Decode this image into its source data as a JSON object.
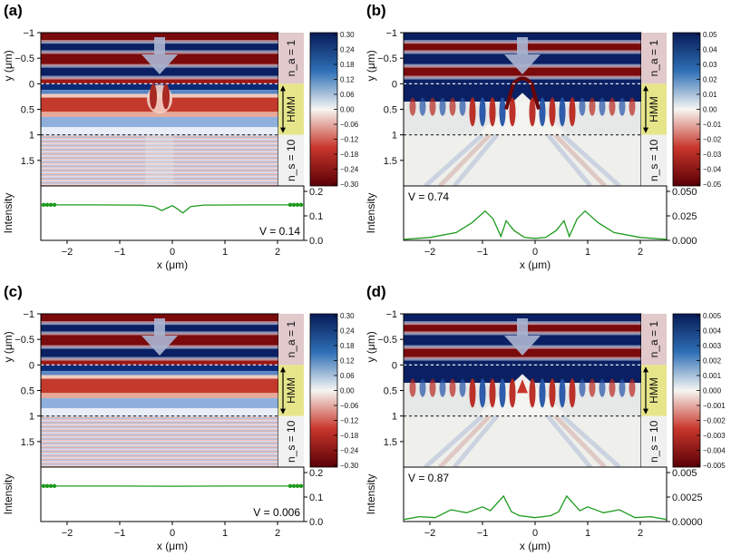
{
  "figure": {
    "chart_data": [
      {
        "type": "heatmap",
        "panel": "(a)",
        "xlabel": "x (μm)",
        "ylabel": "y (μm)",
        "x_ticks": [
          "−2",
          "−1",
          "0",
          "1",
          "2"
        ],
        "x_tick_values": [
          -2,
          -1,
          0,
          1,
          2
        ],
        "y_ticks": [
          "−1",
          "−0.5",
          "0",
          "0.5",
          "1",
          "1.5"
        ],
        "y_tick_values": [
          -1,
          -0.5,
          0,
          0.5,
          1,
          1.5
        ],
        "xlim": [
          -2.5,
          2.5
        ],
        "ylim": [
          -1,
          2
        ],
        "colorbar_ticks": [
          "0.30",
          "0.24",
          "0.18",
          "0.12",
          "0.06",
          "0.00",
          "−0.06",
          "−0.12",
          "−0.18",
          "−0.24",
          "−0.30"
        ],
        "layers": {
          "top": "n_a = 1",
          "middle": "HMM",
          "bottom": "n_s = 10"
        },
        "field_style": "periodic",
        "intensity": {
          "ylabel": "Intensity",
          "y_ticks": [
            "0.2",
            "0.1",
            "0.0"
          ],
          "ylim": [
            0,
            0.2
          ],
          "visibility": "V = 0.14",
          "x": [
            -2.5,
            -1.5,
            -0.6,
            -0.35,
            -0.2,
            -0.1,
            0,
            0.1,
            0.2,
            0.35,
            0.6,
            1.5,
            2.5
          ],
          "y": [
            0.145,
            0.145,
            0.144,
            0.138,
            0.122,
            0.132,
            0.142,
            0.128,
            0.112,
            0.138,
            0.144,
            0.145,
            0.145
          ]
        }
      },
      {
        "type": "heatmap",
        "panel": "(b)",
        "xlabel": "x (μm)",
        "ylabel": "y (μm)",
        "x_ticks": [
          "−2",
          "−1",
          "0",
          "1",
          "2"
        ],
        "x_tick_values": [
          -2,
          -1,
          0,
          1,
          2
        ],
        "y_ticks": [
          "−1",
          "−0.5",
          "0",
          "0.5",
          "1",
          "1.5"
        ],
        "y_tick_values": [
          -1,
          -0.5,
          0,
          0.5,
          1,
          1.5
        ],
        "xlim": [
          -2.5,
          2.5
        ],
        "ylim": [
          -1,
          2
        ],
        "colorbar_ticks": [
          "0.05",
          "0.04",
          "0.03",
          "0.02",
          "0.01",
          "0.00",
          "−0.01",
          "−0.02",
          "−0.03",
          "−0.04",
          "−0.05"
        ],
        "layers": {
          "top": "n_a = 1",
          "middle": "HMM",
          "bottom": "n_s = 10"
        },
        "field_style": "cone",
        "intensity": {
          "ylabel": "Intensity",
          "y_ticks": [
            "0.050",
            "0.025",
            "0.000"
          ],
          "ylim": [
            0,
            0.05
          ],
          "visibility": "V = 0.74",
          "x": [
            -2.5,
            -2.0,
            -1.5,
            -1.2,
            -0.95,
            -0.8,
            -0.65,
            -0.55,
            -0.4,
            -0.2,
            0,
            0.2,
            0.4,
            0.55,
            0.65,
            0.8,
            0.95,
            1.2,
            1.5,
            2.0,
            2.5
          ],
          "y": [
            0.001,
            0.003,
            0.008,
            0.018,
            0.03,
            0.022,
            0.004,
            0.02,
            0.01,
            0.003,
            0.002,
            0.003,
            0.01,
            0.02,
            0.004,
            0.022,
            0.03,
            0.018,
            0.008,
            0.003,
            0.001
          ]
        }
      },
      {
        "type": "heatmap",
        "panel": "(c)",
        "xlabel": "x (μm)",
        "ylabel": "y (μm)",
        "x_ticks": [
          "−2",
          "−1",
          "0",
          "1",
          "2"
        ],
        "x_tick_values": [
          -2,
          -1,
          0,
          1,
          2
        ],
        "y_ticks": [
          "−1",
          "−0.5",
          "0",
          "0.5",
          "1",
          "1.5"
        ],
        "y_tick_values": [
          -1,
          -0.5,
          0,
          0.5,
          1,
          1.5
        ],
        "xlim": [
          -2.5,
          2.5
        ],
        "ylim": [
          -1,
          2
        ],
        "colorbar_ticks": [
          "0.30",
          "0.24",
          "0.18",
          "0.12",
          "0.06",
          "0.00",
          "−0.06",
          "−0.12",
          "−0.18",
          "−0.24",
          "−0.30"
        ],
        "layers": {
          "top": "n_a = 1",
          "middle": "HMM",
          "bottom": "n_s = 10"
        },
        "field_style": "periodic",
        "intensity": {
          "ylabel": "Intensity",
          "y_ticks": [
            "0.2",
            "0.1",
            "0.0"
          ],
          "ylim": [
            0,
            0.2
          ],
          "visibility": "V = 0.006",
          "x": [
            -2.5,
            -1,
            0,
            1,
            2.5
          ],
          "y": [
            0.145,
            0.145,
            0.144,
            0.145,
            0.145
          ]
        }
      },
      {
        "type": "heatmap",
        "panel": "(d)",
        "xlabel": "x (μm)",
        "ylabel": "y (μm)",
        "x_ticks": [
          "−2",
          "−1",
          "0",
          "1",
          "2"
        ],
        "x_tick_values": [
          -2,
          -1,
          0,
          1,
          2
        ],
        "y_ticks": [
          "−1",
          "−0.5",
          "0",
          "0.5",
          "1",
          "1.5"
        ],
        "y_tick_values": [
          -1,
          -0.5,
          0,
          0.5,
          1,
          1.5
        ],
        "xlim": [
          -2.5,
          2.5
        ],
        "ylim": [
          -1,
          2
        ],
        "colorbar_ticks": [
          "0.005",
          "0.004",
          "0.003",
          "0.002",
          "0.001",
          "0.000",
          "−0.001",
          "−0.002",
          "−0.003",
          "−0.004",
          "−0.005"
        ],
        "layers": {
          "top": "n_a = 1",
          "middle": "HMM",
          "bottom": "n_s = 10"
        },
        "field_style": "cone",
        "intensity": {
          "ylabel": "Intensity",
          "y_ticks": [
            "0.005",
            "0.0025",
            "0.0000"
          ],
          "ylim": [
            0,
            0.005
          ],
          "visibility": "V = 0.87",
          "x": [
            -2.5,
            -2.2,
            -1.9,
            -1.6,
            -1.3,
            -1.0,
            -0.85,
            -0.6,
            -0.45,
            -0.3,
            0,
            0.3,
            0.45,
            0.6,
            0.85,
            1.0,
            1.3,
            1.6,
            1.9,
            2.2,
            2.5
          ],
          "y": [
            0.0002,
            0.0005,
            0.0004,
            0.0012,
            0.0009,
            0.0015,
            0.0011,
            0.0026,
            0.001,
            0.0006,
            0.0004,
            0.0006,
            0.001,
            0.0026,
            0.0011,
            0.0015,
            0.0009,
            0.0012,
            0.0004,
            0.0005,
            0.0002
          ]
        }
      }
    ],
    "colors": {
      "neg_dark": "#5a0006",
      "neg_mid": "#c8362b",
      "zero": "#f6f6f2",
      "pos_mid": "#2e6fb6",
      "pos_dark": "#081b57",
      "hmm_label_bg": "#e6e58a",
      "ambient_label_bg": "#e1c9cc",
      "substrate_label_bg": "#f0f0f0",
      "intensity_line": "#1d9a1d",
      "arrow": "#a9b3cf"
    }
  }
}
